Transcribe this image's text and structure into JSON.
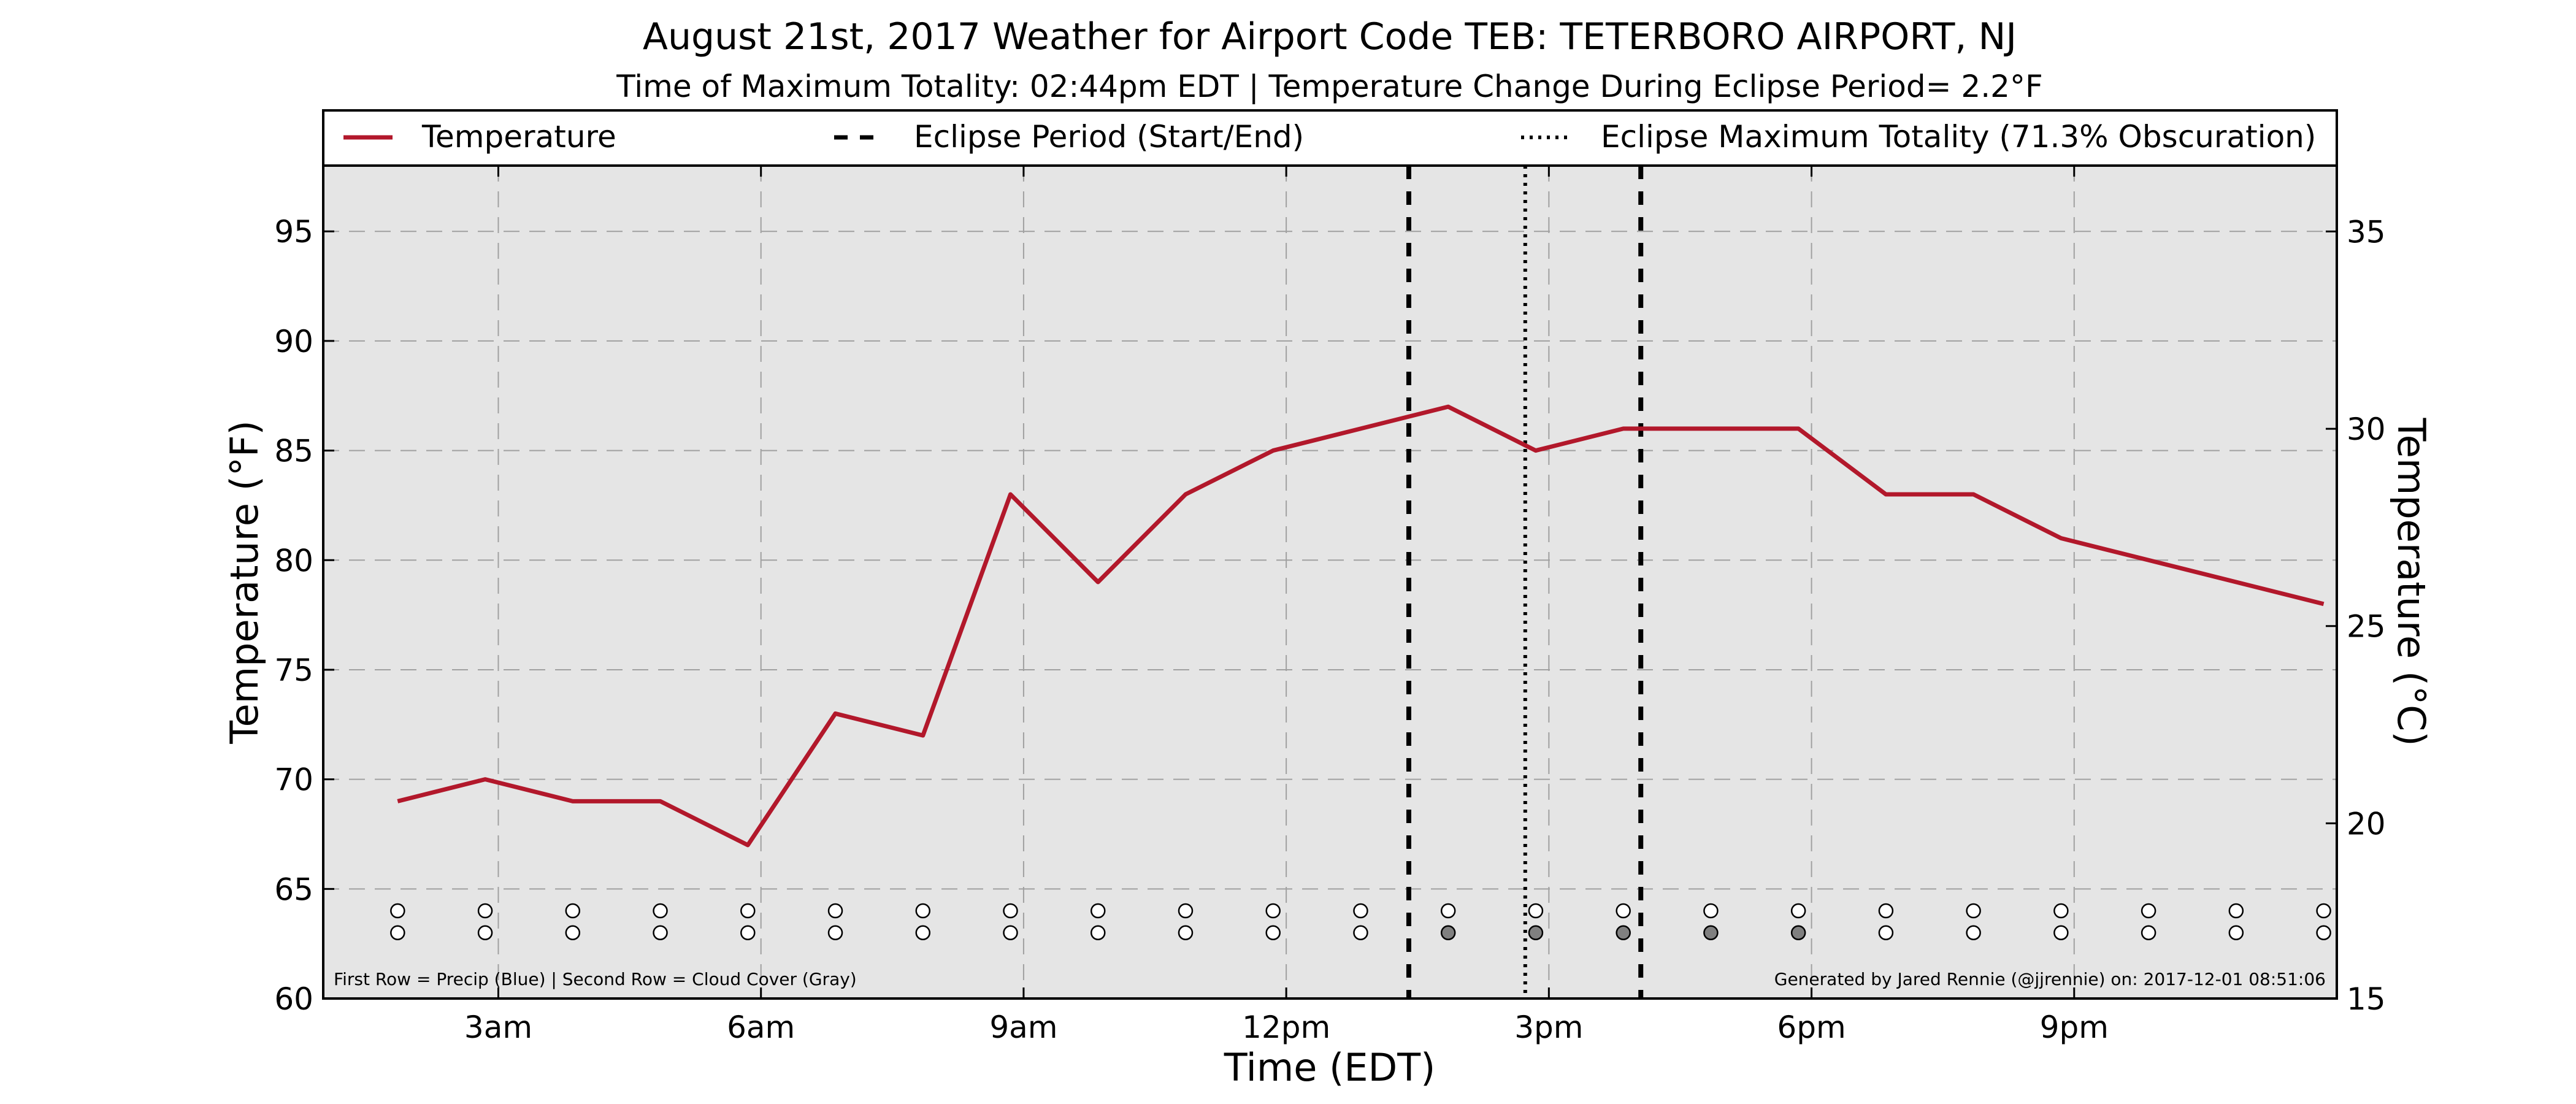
{
  "chart_data": {
    "type": "line",
    "title": "August 21st, 2017 Weather for Airport Code TEB: TETERBORO AIRPORT, NJ",
    "subtitle": "Time of Maximum Totality: 02:44pm EDT | Temperature Change During Eclipse Period= 2.2°F",
    "xlabel": "Time (EDT)",
    "ylabel_left": "Temperature (°F)",
    "ylabel_right": "Temperature (°C)",
    "x_unit": "hours since midnight EDT",
    "x_range": [
      1.0,
      24.0
    ],
    "x_ticks": [
      3,
      6,
      9,
      12,
      15,
      18,
      21
    ],
    "x_tick_labels": [
      "3am",
      "6am",
      "9am",
      "12pm",
      "3pm",
      "6pm",
      "9pm"
    ],
    "y_left_range": [
      60,
      98
    ],
    "y_left_ticks": [
      60,
      65,
      70,
      75,
      80,
      85,
      90,
      95
    ],
    "y_right_range": [
      15.56,
      36.67
    ],
    "y_right_ticks": [
      15,
      20,
      25,
      30,
      35
    ],
    "grid": true,
    "legend": {
      "placement": "top",
      "entries": [
        {
          "label": "Temperature",
          "style": "solid"
        },
        {
          "label": "Eclipse Period (Start/End)",
          "style": "dashed"
        },
        {
          "label": "Eclipse Maximum Totality (71.3% Obscuration)",
          "style": "dotted"
        }
      ]
    },
    "series": [
      {
        "name": "Temperature",
        "color": "#b2182b",
        "x": [
          1.85,
          2.85,
          3.85,
          4.85,
          5.85,
          6.85,
          7.85,
          8.85,
          9.85,
          10.85,
          11.85,
          12.85,
          13.85,
          14.85,
          15.85,
          16.85,
          17.85,
          18.85,
          19.85,
          20.85,
          21.85,
          22.85,
          23.85
        ],
        "values": [
          69,
          70,
          69,
          69,
          67,
          73,
          72,
          83,
          79,
          83,
          85,
          86,
          87,
          85,
          86,
          86,
          86,
          83,
          83,
          81,
          80,
          79,
          78
        ]
      }
    ],
    "eclipse_period": {
      "start": 13.4,
      "end": 16.05
    },
    "max_totality": 14.73,
    "indicator_rows": {
      "x": [
        1.85,
        2.85,
        3.85,
        4.85,
        5.85,
        6.85,
        7.85,
        8.85,
        9.85,
        10.85,
        11.85,
        12.85,
        13.85,
        14.85,
        15.85,
        16.85,
        17.85,
        18.85,
        19.85,
        20.85,
        21.85,
        22.85,
        23.85
      ],
      "precip_y": 64,
      "cloud_y": 63,
      "precip_filled": [
        0,
        0,
        0,
        0,
        0,
        0,
        0,
        0,
        0,
        0,
        0,
        0,
        0,
        0,
        0,
        0,
        0,
        0,
        0,
        0,
        0,
        0,
        0
      ],
      "cloud_filled": [
        0,
        0,
        0,
        0,
        0,
        0,
        0,
        0,
        0,
        0,
        0,
        0,
        1,
        1,
        1,
        1,
        1,
        0,
        0,
        0,
        0,
        0,
        0
      ]
    },
    "note_left": "First Row = Precip (Blue) | Second Row = Cloud Cover (Gray)",
    "note_right": "Generated by Jared Rennie (@jjrennie) on: 2017-12-01 08:51:06"
  },
  "colors": {
    "temperature": "#b2182b",
    "plot_background": "#e5e5e5",
    "grid": "#a0a0a0",
    "cloud_fill": "#808080",
    "empty_fill": "#ffffff"
  }
}
